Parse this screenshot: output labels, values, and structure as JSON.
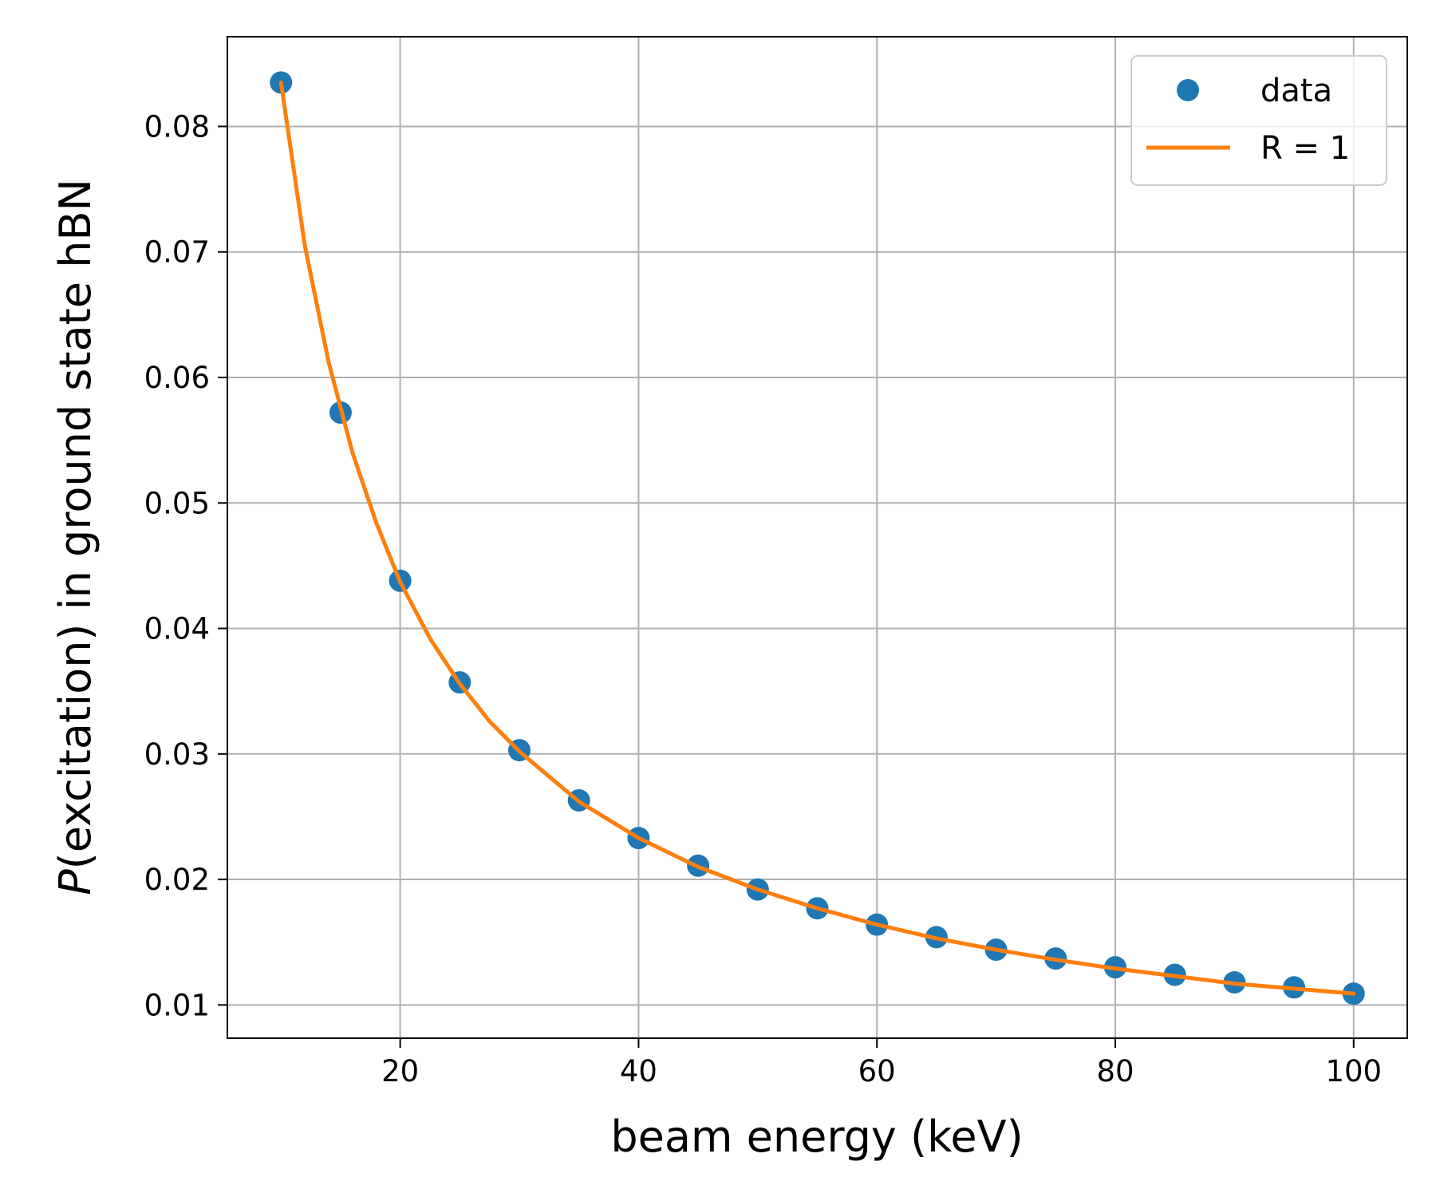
{
  "chart_data": {
    "type": "scatter",
    "xlabel": "beam energy (keV)",
    "ylabel_italic": "P",
    "ylabel_rest": "(excitation) in ground state hBN",
    "xlim": [
      5.5,
      104.5
    ],
    "ylim": [
      0.00735,
      0.08715
    ],
    "xticks": [
      20,
      40,
      60,
      80,
      100
    ],
    "yticks": [
      0.01,
      0.02,
      0.03,
      0.04,
      0.05,
      0.06,
      0.07,
      0.08
    ],
    "grid": true,
    "legend_position": "top-right",
    "colors": {
      "data": "#1f77b4",
      "fit": "#ff7f0e"
    },
    "series": [
      {
        "name": "data",
        "kind": "scatter",
        "x": [
          10,
          15,
          20,
          25,
          30,
          35,
          40,
          45,
          50,
          55,
          60,
          65,
          70,
          75,
          80,
          85,
          90,
          95,
          100
        ],
        "y": [
          0.0835,
          0.0572,
          0.0438,
          0.0357,
          0.0303,
          0.0263,
          0.0233,
          0.0211,
          0.0192,
          0.0177,
          0.0164,
          0.0154,
          0.0144,
          0.0137,
          0.013,
          0.0124,
          0.0118,
          0.0114,
          0.0109
        ]
      },
      {
        "name": "R = 1",
        "kind": "line",
        "x": [
          10,
          12,
          14,
          16,
          18,
          20,
          22.5,
          25,
          27.5,
          30,
          35,
          40,
          45,
          50,
          55,
          60,
          65,
          70,
          75,
          80,
          85,
          90,
          95,
          100
        ],
        "y": [
          0.0835,
          0.0705,
          0.0612,
          0.054,
          0.0484,
          0.0437,
          0.0392,
          0.0356,
          0.0326,
          0.0302,
          0.0262,
          0.0233,
          0.021,
          0.0192,
          0.0177,
          0.0164,
          0.0153,
          0.0144,
          0.0136,
          0.0129,
          0.0123,
          0.0117,
          0.0113,
          0.0109
        ]
      }
    ]
  }
}
